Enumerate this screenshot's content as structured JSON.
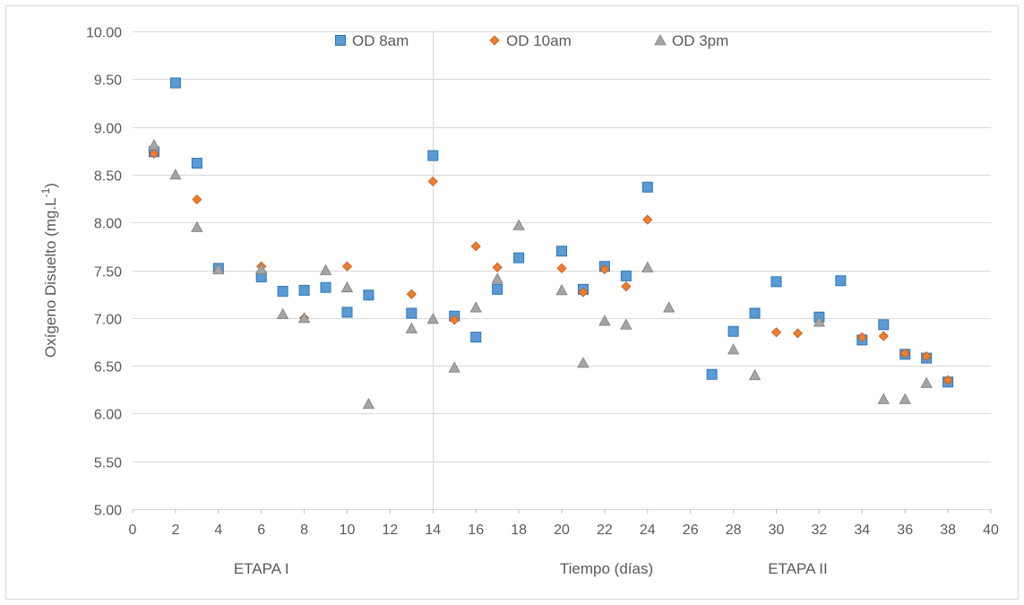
{
  "chart_data": {
    "type": "scatter",
    "title": "",
    "xlabel": "Tiempo (días)",
    "ylabel_prefix": "Oxígeno Disuelto (mg.L",
    "ylabel_sup": "-1",
    "ylabel_suffix": ")",
    "xlim": [
      0,
      40
    ],
    "ylim": [
      5.0,
      10.0
    ],
    "x_ticks": [
      0,
      2,
      4,
      6,
      8,
      10,
      12,
      14,
      16,
      18,
      20,
      22,
      24,
      26,
      28,
      30,
      32,
      34,
      36,
      38,
      40
    ],
    "y_ticks": [
      5.0,
      5.5,
      6.0,
      6.5,
      7.0,
      7.5,
      8.0,
      8.5,
      9.0,
      9.5,
      10.0
    ],
    "y_tick_labels": [
      "5.00",
      "5.50",
      "6.00",
      "6.50",
      "7.00",
      "7.50",
      "8.00",
      "8.50",
      "9.00",
      "9.50",
      "10.00"
    ],
    "grid": "horizontal",
    "legend_position": "top",
    "annotations": [
      {
        "text": "ETAPA I",
        "x": 6
      },
      {
        "text": "ETAPA II",
        "x": 31
      }
    ],
    "vertical_reference_line_x": 14,
    "series": [
      {
        "name": "OD 8am",
        "marker": "square",
        "color": "#5b9bd5",
        "stroke": "#2e75b6",
        "points": [
          [
            1,
            8.74
          ],
          [
            2,
            9.46
          ],
          [
            3,
            8.62
          ],
          [
            4,
            7.52
          ],
          [
            6,
            7.43
          ],
          [
            7,
            7.28
          ],
          [
            8,
            7.29
          ],
          [
            9,
            7.32
          ],
          [
            10,
            7.06
          ],
          [
            11,
            7.24
          ],
          [
            13,
            7.05
          ],
          [
            14,
            8.7
          ],
          [
            15,
            7.02
          ],
          [
            16,
            6.8
          ],
          [
            17,
            7.3
          ],
          [
            18,
            7.63
          ],
          [
            20,
            7.7
          ],
          [
            21,
            7.3
          ],
          [
            22,
            7.54
          ],
          [
            23,
            7.44
          ],
          [
            24,
            8.37
          ],
          [
            27,
            6.41
          ],
          [
            28,
            6.86
          ],
          [
            29,
            7.05
          ],
          [
            30,
            7.38
          ],
          [
            32,
            7.01
          ],
          [
            33,
            7.39
          ],
          [
            34,
            6.77
          ],
          [
            35,
            6.93
          ],
          [
            36,
            6.62
          ],
          [
            37,
            6.58
          ],
          [
            38,
            6.33
          ]
        ]
      },
      {
        "name": "OD 10am",
        "marker": "diamond",
        "color": "#ed7d31",
        "stroke": "#c55a11",
        "points": [
          [
            1,
            8.72
          ],
          [
            3,
            8.24
          ],
          [
            6,
            7.54
          ],
          [
            8,
            7.0
          ],
          [
            10,
            7.54
          ],
          [
            13,
            7.25
          ],
          [
            14,
            8.43
          ],
          [
            15,
            6.98
          ],
          [
            16,
            7.75
          ],
          [
            17,
            7.53
          ],
          [
            20,
            7.52
          ],
          [
            21,
            7.27
          ],
          [
            22,
            7.51
          ],
          [
            23,
            7.33
          ],
          [
            24,
            8.03
          ],
          [
            30,
            6.85
          ],
          [
            31,
            6.84
          ],
          [
            34,
            6.8
          ],
          [
            35,
            6.81
          ],
          [
            36,
            6.63
          ],
          [
            37,
            6.6
          ],
          [
            38,
            6.35
          ]
        ]
      },
      {
        "name": "OD 3pm",
        "marker": "triangle",
        "color": "#a5a5a5",
        "stroke": "#7f7f7f",
        "points": [
          [
            1,
            8.81
          ],
          [
            2,
            8.5
          ],
          [
            3,
            7.95
          ],
          [
            4,
            7.51
          ],
          [
            6,
            7.51
          ],
          [
            7,
            7.04
          ],
          [
            8,
            7.0
          ],
          [
            9,
            7.5
          ],
          [
            10,
            7.32
          ],
          [
            11,
            6.1
          ],
          [
            13,
            6.89
          ],
          [
            14,
            6.99
          ],
          [
            15,
            6.48
          ],
          [
            16,
            7.11
          ],
          [
            17,
            7.41
          ],
          [
            18,
            7.97
          ],
          [
            20,
            7.29
          ],
          [
            21,
            6.53
          ],
          [
            22,
            6.97
          ],
          [
            23,
            6.93
          ],
          [
            24,
            7.53
          ],
          [
            25,
            7.11
          ],
          [
            28,
            6.67
          ],
          [
            29,
            6.4
          ],
          [
            32,
            6.96
          ],
          [
            35,
            6.15
          ],
          [
            36,
            6.15
          ],
          [
            37,
            6.32
          ]
        ]
      }
    ]
  }
}
